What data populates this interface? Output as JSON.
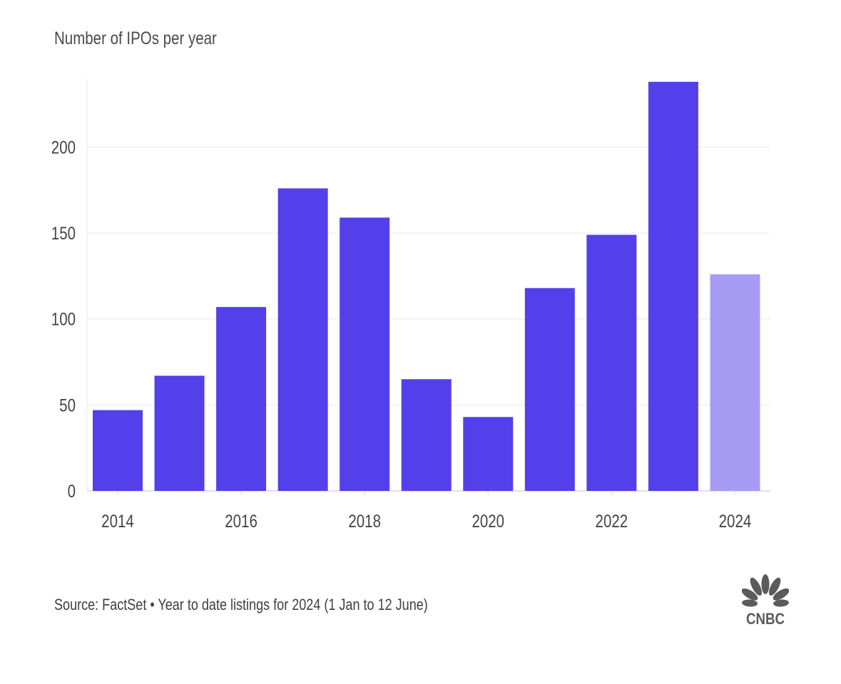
{
  "chart_data": {
    "type": "bar",
    "title": "Number of IPOs per year",
    "categories": [
      "2014",
      "2015",
      "2016",
      "2017",
      "2018",
      "2019",
      "2020",
      "2021",
      "2022",
      "2023",
      "2024"
    ],
    "values": [
      47,
      67,
      107,
      176,
      159,
      65,
      43,
      118,
      149,
      238,
      126
    ],
    "highlight_index": 10,
    "colors": {
      "bar": "#5340ea",
      "highlight_bar": "#a79cf3",
      "grid": "#e9e9e9",
      "axis": "#d8d8d8"
    },
    "x_tick_labels": [
      "2014",
      "2016",
      "2018",
      "2020",
      "2022",
      "2024"
    ],
    "y_ticks": [
      0,
      50,
      100,
      150,
      200
    ],
    "ylim": [
      0,
      240
    ],
    "grid": true,
    "legend": "none"
  },
  "source": "Source: FactSet • Year to date listings for 2024 (1 Jan to 12 June)",
  "logo": {
    "icon": "nbc-peacock-icon",
    "text": "CNBC"
  }
}
